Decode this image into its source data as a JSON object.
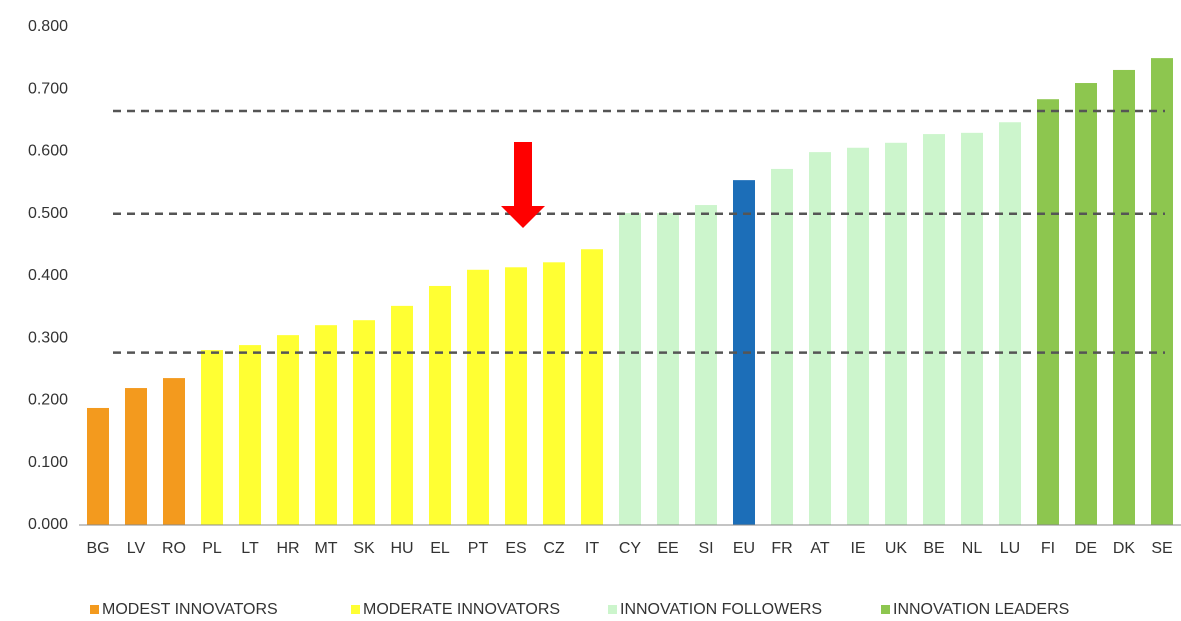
{
  "chart_data": {
    "type": "bar",
    "categories": [
      "BG",
      "LV",
      "RO",
      "PL",
      "LT",
      "HR",
      "MT",
      "SK",
      "HU",
      "EL",
      "PT",
      "ES",
      "CZ",
      "IT",
      "CY",
      "EE",
      "SI",
      "EU",
      "FR",
      "AT",
      "IE",
      "UK",
      "BE",
      "NL",
      "LU",
      "FI",
      "DE",
      "DK",
      "SE"
    ],
    "values": [
      0.188,
      0.22,
      0.236,
      0.281,
      0.289,
      0.305,
      0.321,
      0.329,
      0.352,
      0.384,
      0.41,
      0.414,
      0.422,
      0.443,
      0.501,
      0.501,
      0.514,
      0.554,
      0.572,
      0.599,
      0.606,
      0.614,
      0.628,
      0.63,
      0.647,
      0.684,
      0.71,
      0.731,
      0.75
    ],
    "colors": [
      "#f39a1e",
      "#f39a1e",
      "#f39a1e",
      "#ffff33",
      "#ffff33",
      "#ffff33",
      "#ffff33",
      "#ffff33",
      "#ffff33",
      "#ffff33",
      "#ffff33",
      "#ffff33",
      "#ffff33",
      "#ffff33",
      "#ccf5cc",
      "#ccf5cc",
      "#ccf5cc",
      "#1c6eb8",
      "#ccf5cc",
      "#ccf5cc",
      "#ccf5cc",
      "#ccf5cc",
      "#ccf5cc",
      "#ccf5cc",
      "#ccf5cc",
      "#8dc64f",
      "#8dc64f",
      "#8dc64f",
      "#8dc64f"
    ],
    "legend": [
      {
        "name": "MODEST INNOVATORS",
        "color": "#f39a1e"
      },
      {
        "name": "MODERATE INNOVATORS",
        "color": "#ffff33"
      },
      {
        "name": "INNOVATION FOLLOWERS",
        "color": "#ccf5cc"
      },
      {
        "name": "INNOVATION LEADERS",
        "color": "#8dc64f"
      }
    ],
    "reference_lines": [
      0.665,
      0.5,
      0.277
    ],
    "ylim": [
      0,
      0.8
    ],
    "yticks": [
      {
        "value": 0,
        "label": "0.000"
      },
      {
        "value": 0.1,
        "label": "0.100"
      },
      {
        "value": 0.2,
        "label": "0.200"
      },
      {
        "value": 0.3,
        "label": "0.300"
      },
      {
        "value": 0.4,
        "label": "0.400"
      },
      {
        "value": 0.5,
        "label": "0.500"
      },
      {
        "value": 0.6,
        "label": "0.600"
      },
      {
        "value": 0.7,
        "label": "0.700"
      },
      {
        "value": 0.8,
        "label": "0.800"
      }
    ],
    "grid": false
  }
}
